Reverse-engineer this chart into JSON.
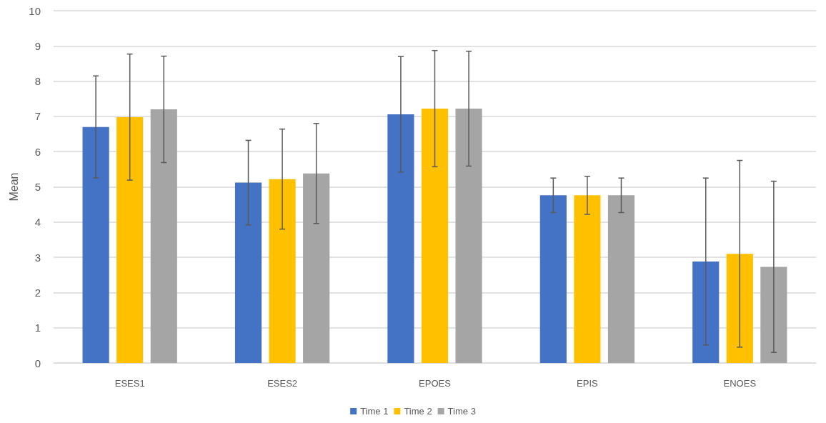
{
  "chart_data": {
    "type": "bar",
    "ylabel": "Mean",
    "categories": [
      "ESES1",
      "ESES2",
      "EPOES",
      "EPIS",
      "ENOES"
    ],
    "series": [
      {
        "name": "Time 1",
        "color": "#4472c4",
        "values": [
          6.7,
          5.12,
          7.06,
          4.76,
          2.88
        ],
        "errors": [
          1.45,
          1.2,
          1.64,
          0.49,
          2.37
        ]
      },
      {
        "name": "Time 2",
        "color": "#ffc000",
        "values": [
          6.98,
          5.22,
          7.22,
          4.76,
          3.1
        ],
        "errors": [
          1.79,
          1.42,
          1.65,
          0.54,
          2.65
        ]
      },
      {
        "name": "Time 3",
        "color": "#a5a5a5",
        "values": [
          7.2,
          5.38,
          7.22,
          4.76,
          2.73
        ],
        "errors": [
          1.51,
          1.42,
          1.63,
          0.49,
          2.43
        ]
      }
    ],
    "ylim": [
      0,
      10
    ],
    "yticks": [
      0,
      1,
      2,
      3,
      4,
      5,
      6,
      7,
      8,
      9,
      10
    ],
    "grid": "y",
    "legend": "bottom"
  }
}
